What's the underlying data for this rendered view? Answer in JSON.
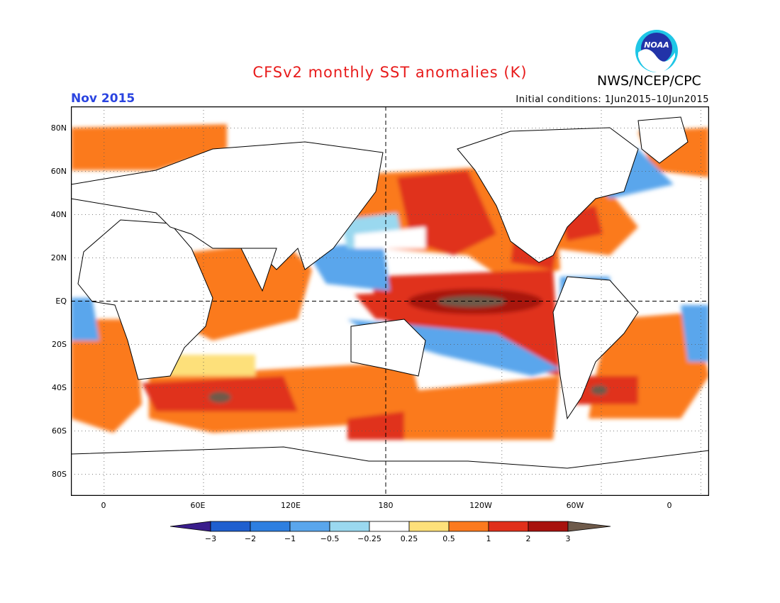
{
  "header": {
    "title": "CFSv2 monthly SST anomalies (K)",
    "agency": "NWS/NCEP/CPC",
    "logo_text": "NOAA",
    "month": "Nov 2015",
    "initial_conditions": "Initial conditions: 1Jun2015–10Jun2015"
  },
  "map": {
    "projection": "cylindrical equidistant",
    "lon_range": [
      -20,
      365
    ],
    "lat_range": [
      -90,
      90
    ],
    "lat_labels": [
      "80N",
      "60N",
      "40N",
      "20N",
      "EQ",
      "20S",
      "40S",
      "60S",
      "80S"
    ],
    "lon_labels": [
      "0",
      "60E",
      "120E",
      "180",
      "120W",
      "60W",
      "0"
    ],
    "dashed_reference_lines": [
      "EQ",
      "180"
    ],
    "features": [
      "strong positive anomaly (>3 K) in central-eastern equatorial Pacific",
      "negative anomalies in subtropical North and South Pacific",
      "positive anomalies across Indian Ocean and North Pacific"
    ]
  },
  "colorbar": {
    "labels": [
      "−3",
      "−2",
      "−1",
      "−0.5",
      "−0.25",
      "0.25",
      "0.5",
      "1",
      "2",
      "3"
    ],
    "colors": [
      "#3a1e8c",
      "#1f5fcf",
      "#2e7fe0",
      "#5aa6ec",
      "#9ad8ef",
      "#ffffff",
      "#fde07a",
      "#fb7a1e",
      "#e0301b",
      "#a8120e",
      "#6e5a4a"
    ]
  },
  "colors": {
    "title": "#e81b1b",
    "month": "#2a44e0"
  }
}
